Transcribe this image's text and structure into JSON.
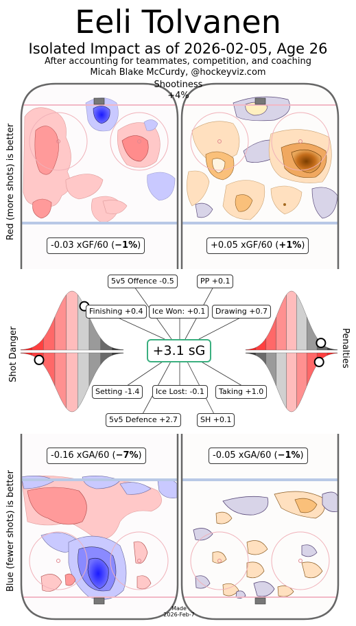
{
  "header": {
    "title": "Eeli Tolvanen",
    "subtitle": "Isolated Impact as of 2026-02-05, Age 26",
    "context": "After accounting for teammates, competition, and coaching",
    "credit": "Micah Blake McCurdy, @hockeyviz.com",
    "shootiness_label": "Shootiness",
    "shootiness_value": "+4%"
  },
  "side_labels": {
    "left_top": "Red (more shots) is better",
    "left_bottom": "Blue (fewer shots) is better",
    "left_middle": "Shot Danger",
    "right_middle": "Penalties"
  },
  "rinks": {
    "top_left": {
      "text": "-0.03 xGF/60 (",
      "bold": "−1%",
      "close": ")"
    },
    "top_right": {
      "text": "+0.05 xGF/60 (",
      "bold": "+1%",
      "close": ")"
    },
    "bottom_left": {
      "text": "-0.16 xGA/60 (",
      "bold": "−7%",
      "close": ")"
    },
    "bottom_right": {
      "text": "-0.05 xGA/60 (",
      "bold": "−1%",
      "close": ")"
    }
  },
  "components": {
    "total": "+3.1 sG",
    "offence_5v5": "5v5 Offence -0.5",
    "pp": "PP +0.1",
    "finishing": "Finishing +0.4",
    "ice_won": "Ice Won: +0.1",
    "drawing": "Drawing +0.7",
    "setting": "Setting -1.4",
    "ice_lost": "Ice Lost: -0.1",
    "taking": "Taking +1.0",
    "defence_5v5": "5v5 Defence +2.7",
    "sh": "SH +0.1"
  },
  "footer": {
    "made_line1": "Made",
    "made_line2": "2026-Feb-7"
  },
  "chart_data": {
    "type": "heatmap",
    "title": "Eeli Tolvanen",
    "subtitle": "Isolated Impact as of 2026-02-05, Age 26",
    "panels": [
      {
        "name": "5v5 offence",
        "metric": "xGF/60",
        "value": -0.03,
        "percent": -1
      },
      {
        "name": "PP offence",
        "metric": "xGF/60",
        "value": 0.05,
        "percent": 1
      },
      {
        "name": "5v5 defence",
        "metric": "xGA/60",
        "value": -0.16,
        "percent": -7
      },
      {
        "name": "SH defence",
        "metric": "xGA/60",
        "value": -0.05,
        "percent": -1
      }
    ],
    "shootiness_percent": 4,
    "total_sG": 3.1,
    "components": [
      {
        "label": "5v5 Offence",
        "value": -0.5
      },
      {
        "label": "PP",
        "value": 0.1
      },
      {
        "label": "Finishing",
        "value": 0.4
      },
      {
        "label": "Ice Won",
        "value": 0.1
      },
      {
        "label": "Drawing",
        "value": 0.7
      },
      {
        "label": "Setting",
        "value": -1.4
      },
      {
        "label": "Ice Lost",
        "value": -0.1
      },
      {
        "label": "Taking",
        "value": 1.0
      },
      {
        "label": "5v5 Defence",
        "value": 2.7
      },
      {
        "label": "SH",
        "value": 0.1
      }
    ],
    "percentile_markers": [
      {
        "name": "shot danger for",
        "percentile": 0.62
      },
      {
        "name": "shot danger against",
        "percentile": 0.18
      },
      {
        "name": "penalties drawn",
        "percentile": 0.82
      },
      {
        "name": "penalties taken",
        "percentile": 0.8
      }
    ],
    "colors": {
      "more_shots": "#ff5555",
      "fewer_shots": "#3333ff",
      "pp_heat": "#e08a2a",
      "sh_heat": "#f5b56a",
      "total_box_border": "#3aaf7f"
    }
  }
}
